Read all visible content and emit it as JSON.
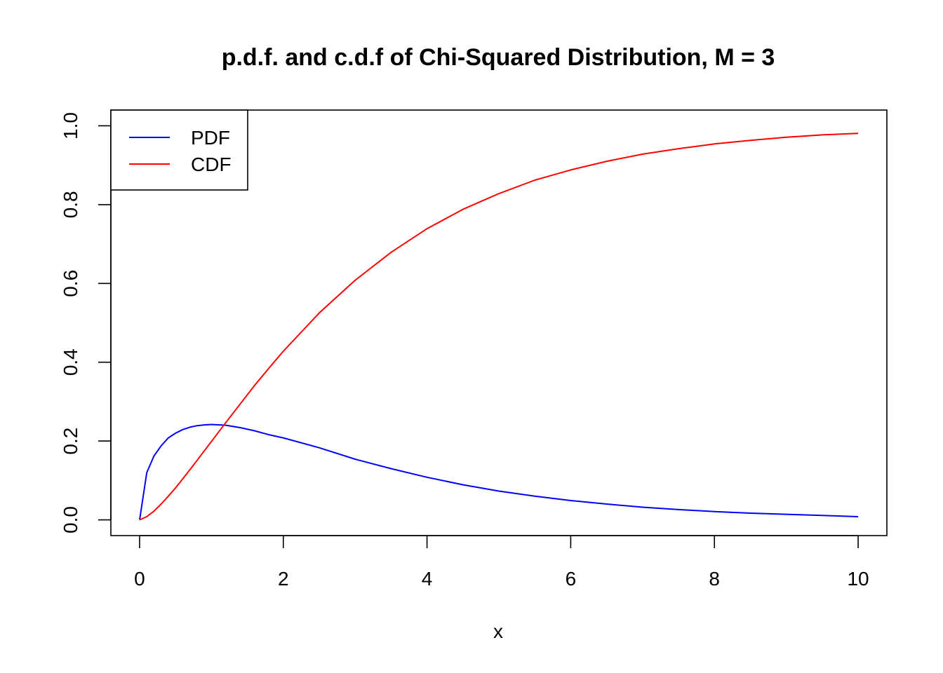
{
  "chart_data": {
    "type": "line",
    "title": "p.d.f. and c.d.f of Chi-Squared Distribution, M = 3",
    "xlabel": "x",
    "ylabel": "",
    "xlim": [
      -0.4,
      10.4
    ],
    "ylim": [
      -0.04,
      1.04
    ],
    "x_ticks": [
      0,
      2,
      4,
      6,
      8,
      10
    ],
    "y_ticks": [
      0.0,
      0.2,
      0.4,
      0.6,
      0.8,
      1.0
    ],
    "x_tick_labels": [
      "0",
      "2",
      "4",
      "6",
      "8",
      "10"
    ],
    "y_tick_labels": [
      "0.0",
      "0.2",
      "0.4",
      "0.6",
      "0.8",
      "1.0"
    ],
    "grid": false,
    "legend_position": "top-left",
    "x": [
      0,
      0.1,
      0.2,
      0.3,
      0.4,
      0.5,
      0.6,
      0.7,
      0.8,
      0.9,
      1.0,
      1.2,
      1.4,
      1.6,
      1.8,
      2.0,
      2.5,
      3.0,
      3.5,
      4.0,
      4.5,
      5.0,
      5.5,
      6.0,
      6.5,
      7.0,
      7.5,
      8.0,
      8.5,
      9.0,
      9.5,
      10.0
    ],
    "series": [
      {
        "name": "PDF",
        "color": "#0000ff",
        "values": [
          0.0,
          0.12,
          0.162,
          0.188,
          0.208,
          0.22,
          0.229,
          0.235,
          0.239,
          0.241,
          0.242,
          0.24,
          0.234,
          0.226,
          0.216,
          0.208,
          0.183,
          0.154,
          0.13,
          0.108,
          0.089,
          0.073,
          0.06,
          0.049,
          0.04,
          0.032,
          0.026,
          0.021,
          0.017,
          0.014,
          0.011,
          0.008
        ]
      },
      {
        "name": "CDF",
        "color": "#ff0000",
        "values": [
          0.0,
          0.008,
          0.022,
          0.04,
          0.06,
          0.081,
          0.104,
          0.127,
          0.151,
          0.175,
          0.199,
          0.247,
          0.294,
          0.341,
          0.385,
          0.428,
          0.525,
          0.608,
          0.679,
          0.739,
          0.788,
          0.828,
          0.862,
          0.888,
          0.91,
          0.928,
          0.942,
          0.954,
          0.963,
          0.971,
          0.977,
          0.981
        ]
      }
    ]
  }
}
